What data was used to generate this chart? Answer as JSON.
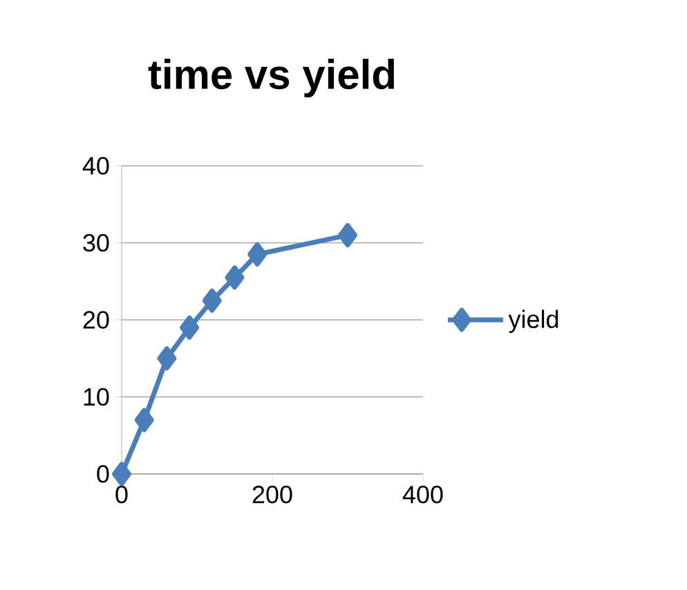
{
  "chart_data": {
    "type": "line",
    "title": "time vs yield",
    "x": [
      0,
      30,
      60,
      90,
      120,
      150,
      180,
      300
    ],
    "series": [
      {
        "name": "yield",
        "color": "#4a7ebb",
        "values": [
          0,
          7,
          15,
          19,
          22.5,
          25.5,
          28.5,
          31
        ]
      }
    ],
    "xlim": [
      0,
      400
    ],
    "xticks": [
      0,
      200,
      400
    ],
    "ylim": [
      0,
      40
    ],
    "yticks": [
      0,
      10,
      20,
      30,
      40
    ],
    "grid": "y",
    "legend": "right",
    "marker": "diamond",
    "line_style": "solid"
  }
}
